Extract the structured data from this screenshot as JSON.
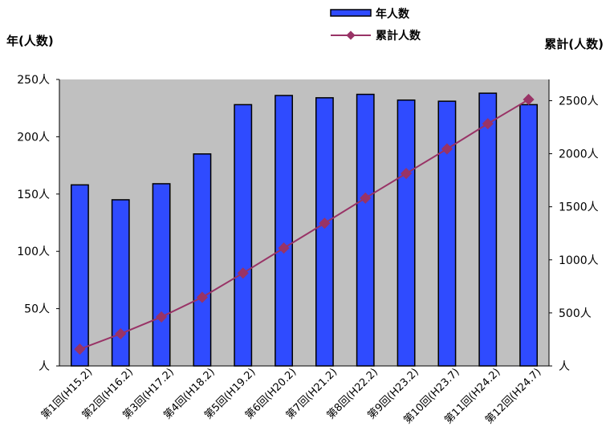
{
  "chart_data": {
    "type": "bar+line",
    "categories": [
      "第1回(H15.2)",
      "第2回(H16.2)",
      "第3回(H17.2)",
      "第4回(H18.2)",
      "第5回(H19.2)",
      "第6回(H20.2)",
      "第7回(H21.2)",
      "第8回(H22.2)",
      "第9回(H23.2)",
      "第10回(H23.7)",
      "第11回(H24.2)",
      "第12回(H24.7)"
    ],
    "series": [
      {
        "name": "年人数",
        "type": "bar",
        "axis": "left",
        "color": "#2f4bff",
        "values": [
          158,
          145,
          159,
          185,
          228,
          236,
          234,
          237,
          232,
          231,
          238,
          228
        ]
      },
      {
        "name": "累計人数",
        "type": "line",
        "axis": "right",
        "color": "#993366",
        "values": [
          158,
          303,
          462,
          647,
          875,
          1111,
          1345,
          1582,
          1814,
          2045,
          2283,
          2511
        ]
      }
    ],
    "left_axis": {
      "title": "年(人数)",
      "ylim": [
        0,
        250
      ],
      "ticks": [
        "人",
        "50人",
        "100人",
        "150人",
        "200人",
        "250人"
      ]
    },
    "right_axis": {
      "title": "累計(人数)",
      "ylim": [
        0,
        2700
      ],
      "ticks": [
        "人",
        "500人",
        "1000人",
        "1500人",
        "2000人",
        "2500人"
      ]
    },
    "legend": {
      "placement": "top-center"
    },
    "plot_background": "#c0c0c0",
    "grid": false
  }
}
